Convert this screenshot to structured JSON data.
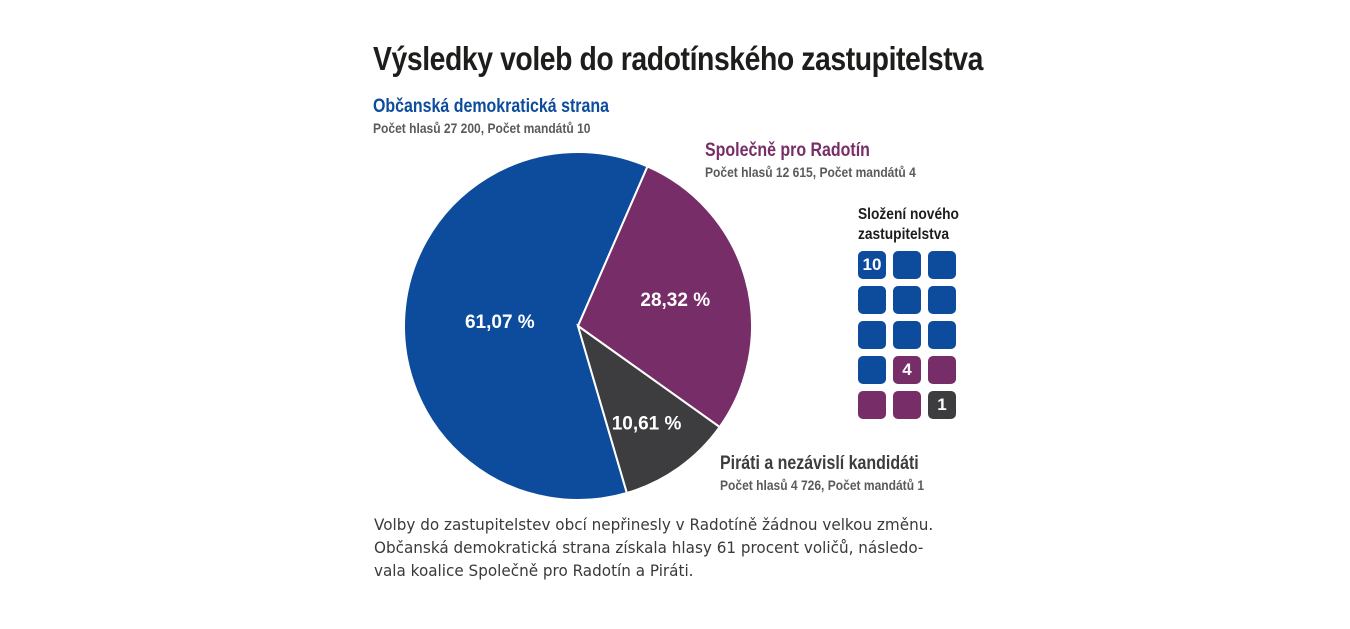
{
  "title": "Výsledky voleb do radotínského zastupitelstva",
  "colors": {
    "ods": "#0d4c9c",
    "spr": "#772d67",
    "pirati": "#3d3d3f"
  },
  "parties": {
    "ods": {
      "name": "Občanská demokratická strana",
      "stats": "Počet hlasů 27 200, Počet mandátů 10"
    },
    "spr": {
      "name": "Společně pro Radotín",
      "stats": "Počet hlasů 12 615, Počet mandátů 4"
    },
    "pirati": {
      "name": "Piráti a nezávislí kandidáti",
      "stats": "Počet hlasů 4 726, Počet mandátů 1"
    }
  },
  "chart_data": {
    "type": "pie",
    "title": "Výsledky voleb do radotínského zastupitelstva",
    "slices": [
      {
        "label": "Občanská demokratická strana",
        "value": 61.07,
        "display": "61,07 %",
        "votes": 27200,
        "seats": 10,
        "color": "#0d4c9c"
      },
      {
        "label": "Společně pro Radotín",
        "value": 28.32,
        "display": "28,32 %",
        "votes": 12615,
        "seats": 4,
        "color": "#772d67"
      },
      {
        "label": "Piráti a nezávislí kandidáti",
        "value": 10.61,
        "display": "10,61 %",
        "votes": 4726,
        "seats": 1,
        "color": "#3d3d3f"
      }
    ]
  },
  "seats": {
    "title_line1": "Složení nového",
    "title_line2": "zastupitelstva",
    "counts": [
      10,
      4,
      1
    ],
    "labels": [
      "10",
      "4",
      "1"
    ]
  },
  "text": {
    "line1": "Volby do zastupitelstev obcí nepřinesly v Radotíně žádnou velkou změnu.",
    "line2": "Občanská demokratická strana získala hlasy 61 procent voličů, následo-",
    "line3": "vala koalice Společně pro Radotín a Piráti."
  }
}
